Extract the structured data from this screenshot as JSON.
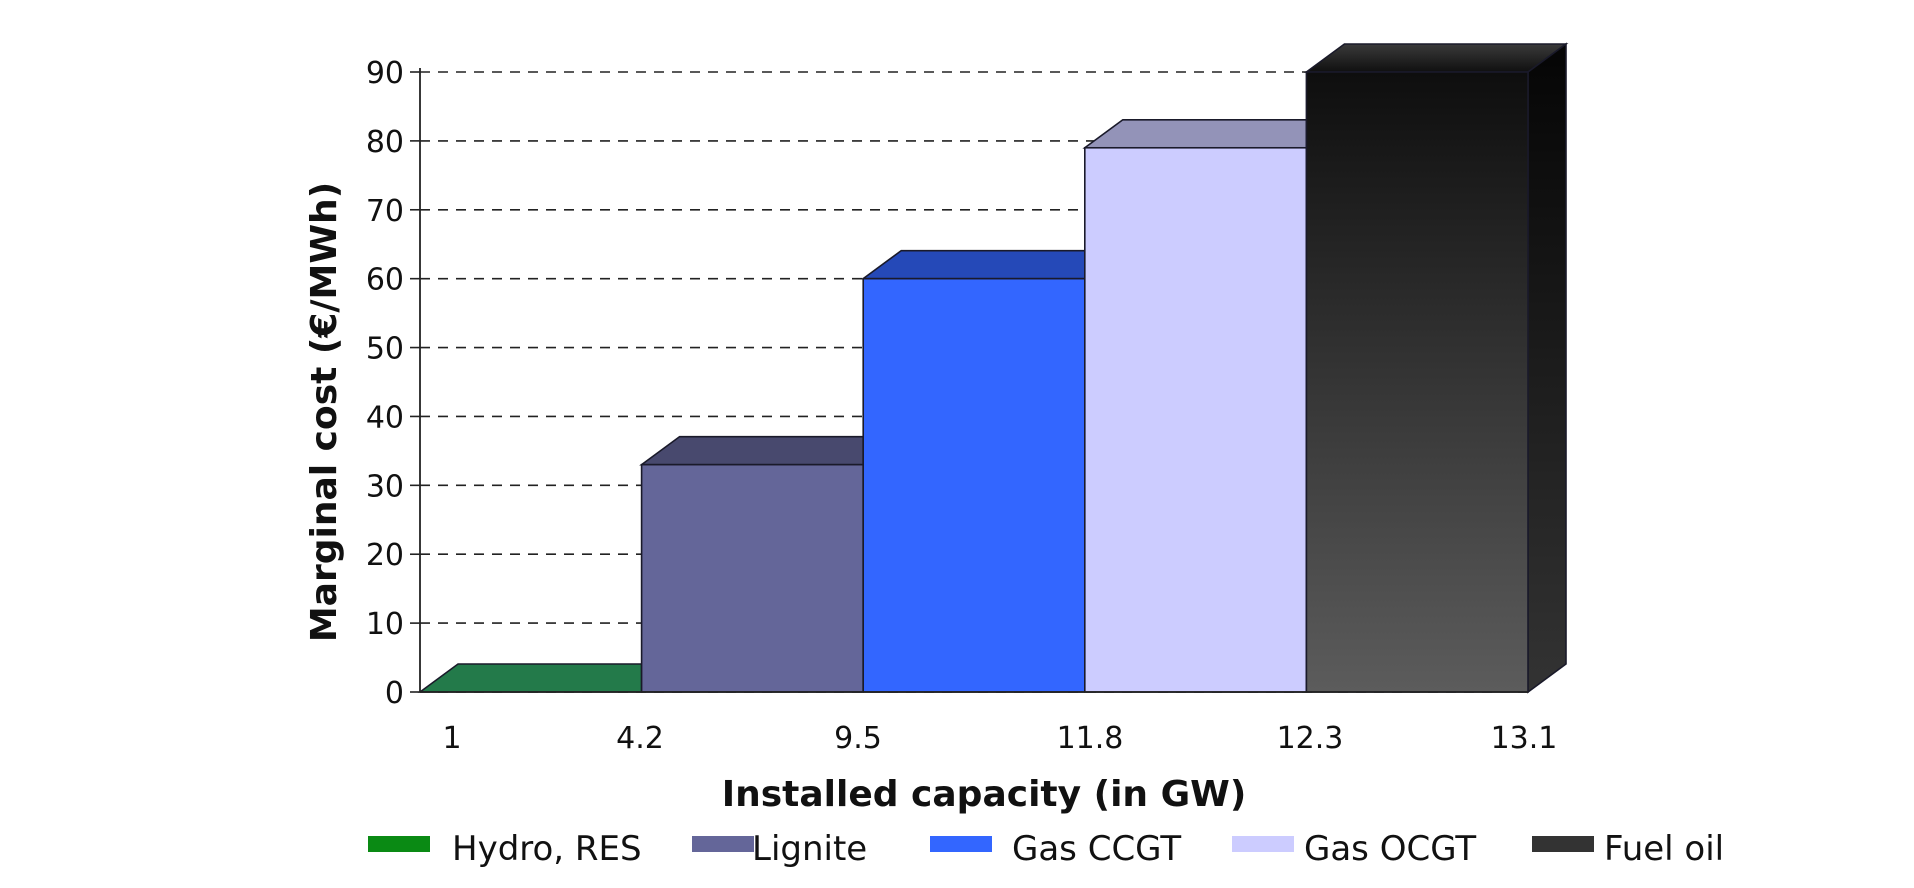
{
  "chart_data": {
    "type": "bar",
    "style": "3d-step",
    "xlabel": "Installed capacity (in GW)",
    "ylabel": "Marginal cost (€/MWh)",
    "ylim": [
      0,
      90
    ],
    "yticks": [
      "0",
      "10",
      "20",
      "30",
      "40",
      "50",
      "60",
      "70",
      "80",
      "90"
    ],
    "xticks": [
      "1",
      "4.2",
      "9.5",
      "11.8",
      "12.3",
      "13.1"
    ],
    "grid": true,
    "legend_position": "bottom",
    "series": [
      {
        "name": "Hydro, RES",
        "value": 0,
        "color": "#237a4a",
        "legend_color": "#0a8a14"
      },
      {
        "name": "Lignite",
        "value": 33,
        "color": "#646699",
        "legend_color": "#646699"
      },
      {
        "name": "Gas CCGT",
        "value": 60,
        "color": "#3366ff",
        "legend_color": "#3366ff"
      },
      {
        "name": "Gas OCGT",
        "value": 79,
        "color": "#ccccff",
        "legend_color": "#ccccff"
      },
      {
        "name": "Fuel oil",
        "value": 90,
        "color": "#2a2a2a",
        "legend_color": "#333333"
      }
    ]
  }
}
